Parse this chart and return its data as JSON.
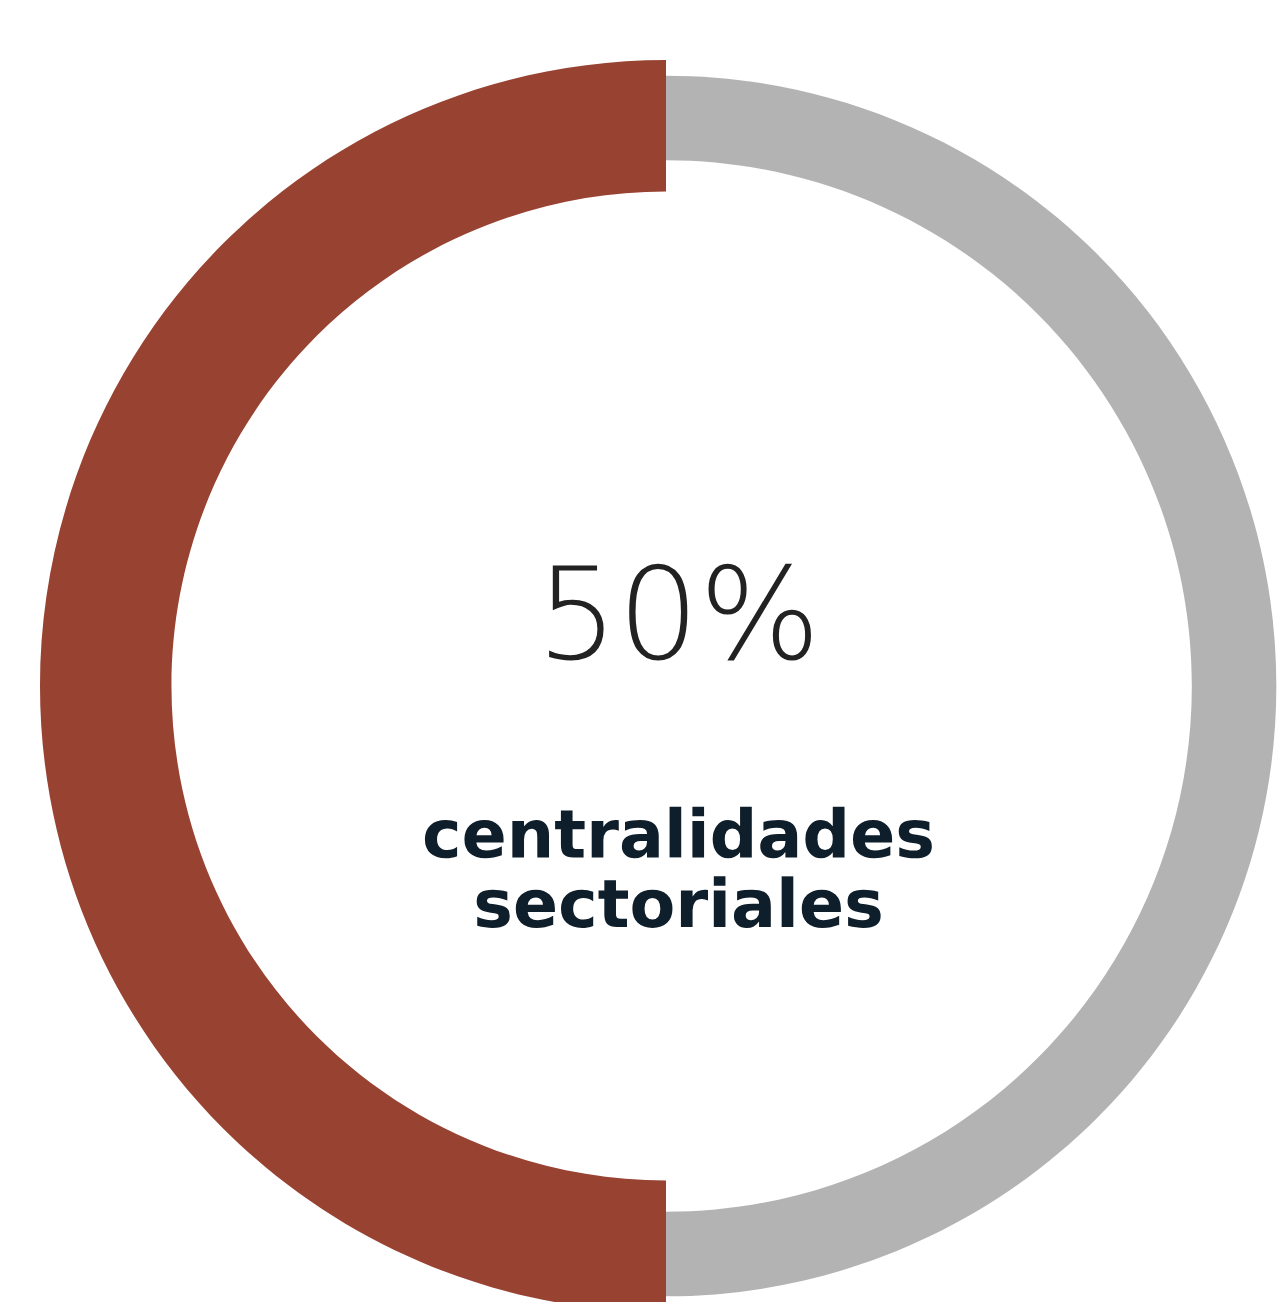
{
  "chart_data": {
    "type": "donut",
    "categories": [
      null,
      null
    ],
    "values": [
      50,
      50
    ],
    "colors": [
      "#984232",
      "#b3b3b3"
    ],
    "annotations": [
      "50%",
      "centralidades sectoriales"
    ],
    "legend": false
  }
}
